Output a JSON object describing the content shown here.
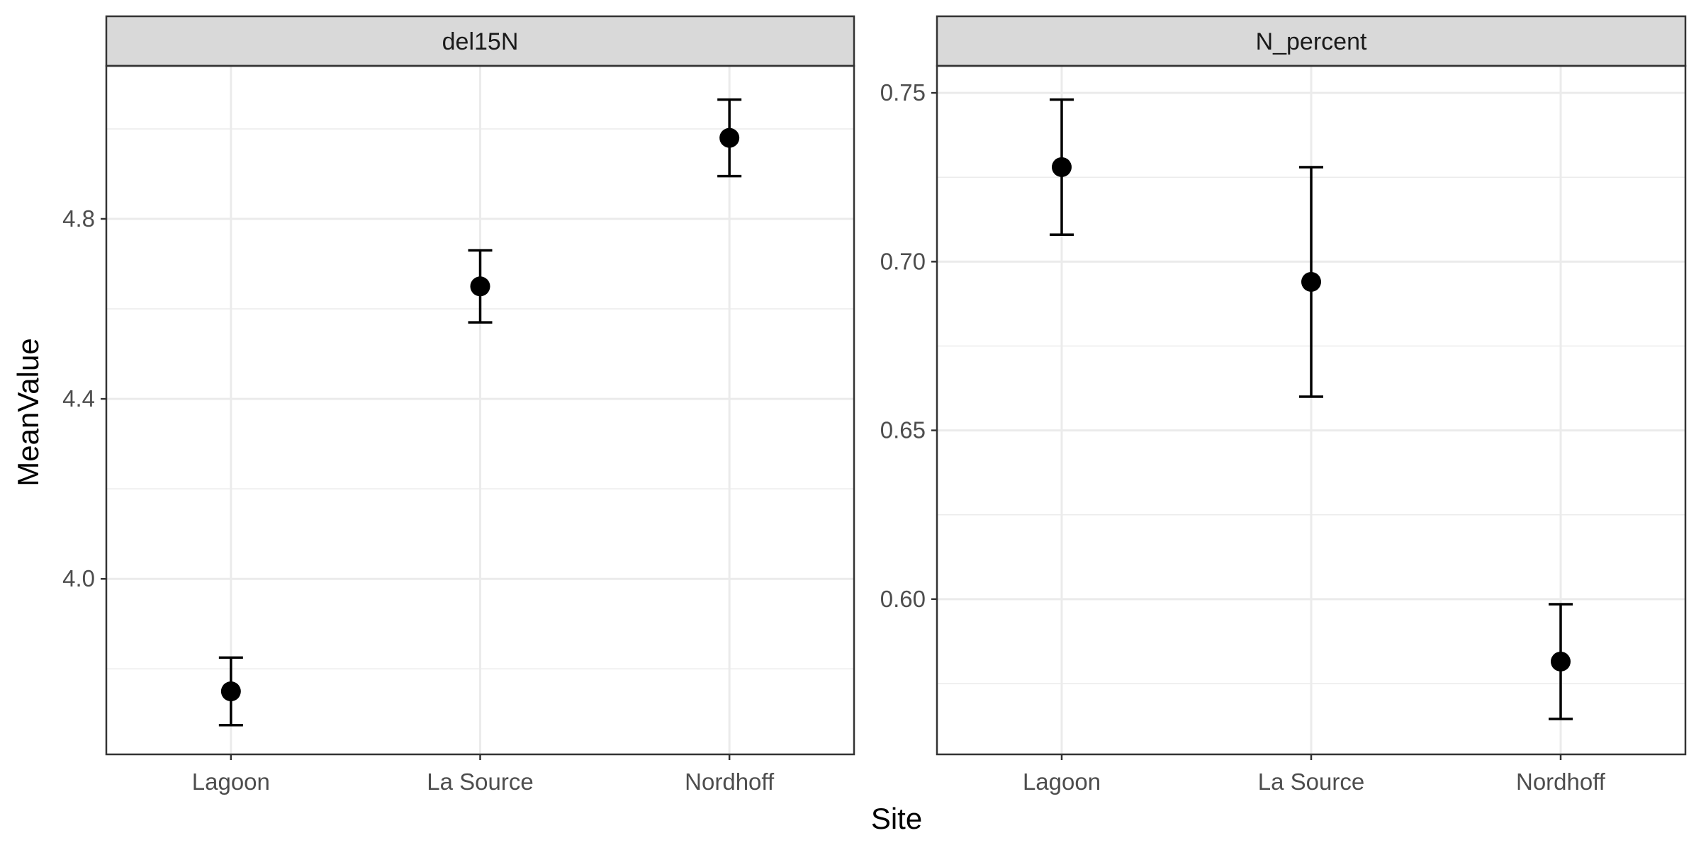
{
  "chart_data": {
    "type": "scatter",
    "xlabel": "Site",
    "ylabel": "MeanValue",
    "categories": [
      "Lagoon",
      "La Source",
      "Nordhoff"
    ],
    "grid": true,
    "facets": [
      {
        "title": "del15N",
        "ylim": [
          3.61,
          5.14
        ],
        "yticks": [
          4.0,
          4.4,
          4.8
        ],
        "ytick_labels": [
          "4.0",
          "4.4",
          "4.8"
        ],
        "points": [
          {
            "x": "Lagoon",
            "y": 3.75,
            "ymin": 3.675,
            "ymax": 3.825
          },
          {
            "x": "La Source",
            "y": 4.65,
            "ymin": 4.57,
            "ymax": 4.73
          },
          {
            "x": "Nordhoff",
            "y": 4.98,
            "ymin": 4.895,
            "ymax": 5.065
          }
        ]
      },
      {
        "title": "N_percent",
        "ylim": [
          0.554,
          0.758
        ],
        "yticks": [
          0.6,
          0.65,
          0.7,
          0.75
        ],
        "ytick_labels": [
          "0.60",
          "0.65",
          "0.70",
          "0.75"
        ],
        "points": [
          {
            "x": "Lagoon",
            "y": 0.728,
            "ymin": 0.708,
            "ymax": 0.748
          },
          {
            "x": "La Source",
            "y": 0.694,
            "ymin": 0.66,
            "ymax": 0.728
          },
          {
            "x": "Nordhoff",
            "y": 0.5815,
            "ymin": 0.5645,
            "ymax": 0.5985
          }
        ]
      }
    ]
  }
}
